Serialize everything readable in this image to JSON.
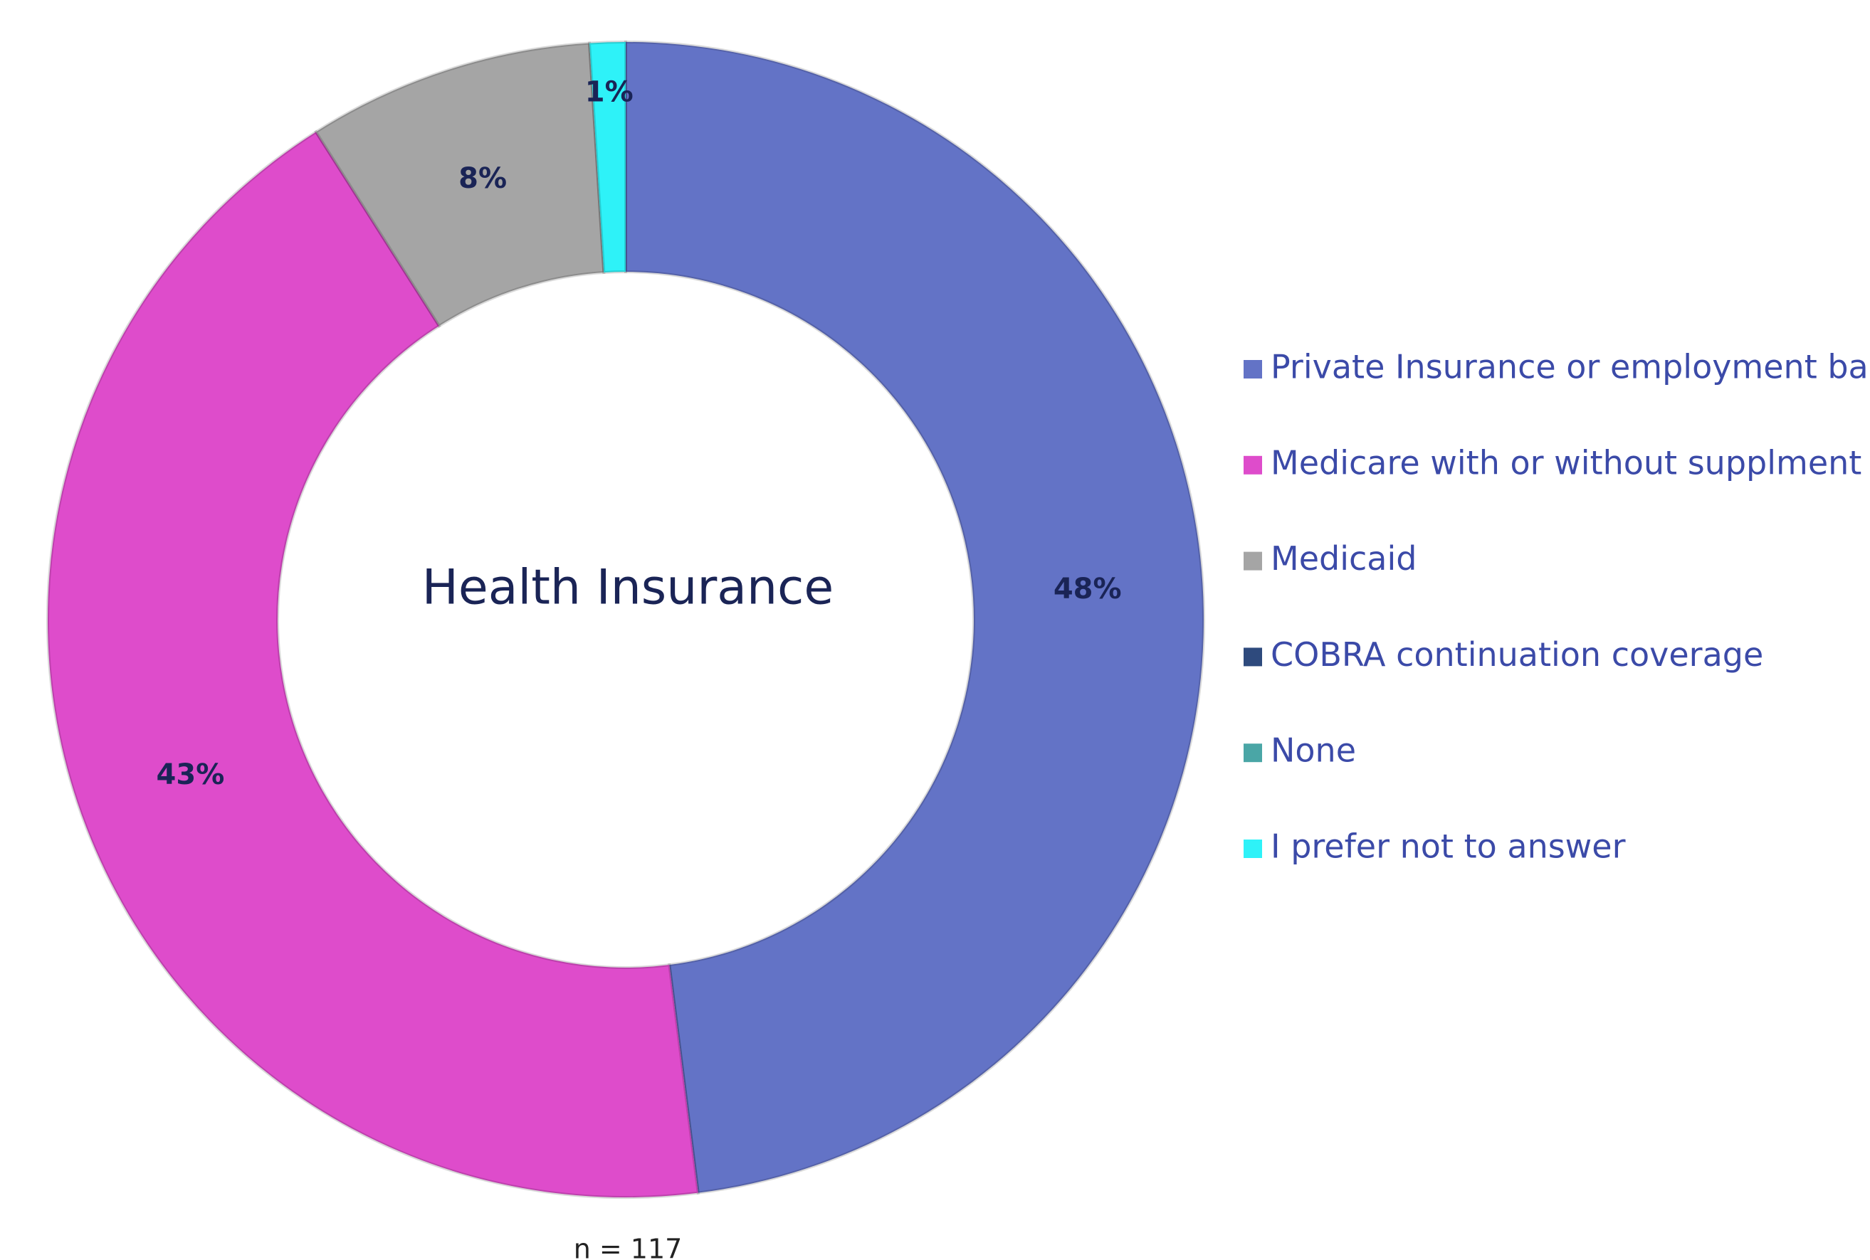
{
  "chart_data": {
    "type": "pie",
    "title": "Health Insurance",
    "note": "n = 117",
    "categories": [
      "Private Insurance or employment based",
      "Medicare with or without supplment",
      "Medicaid",
      "COBRA continuation coverage",
      "None",
      "I prefer not to answer"
    ],
    "values": [
      48,
      43,
      8,
      0,
      0,
      1
    ],
    "value_labels": [
      "48%",
      "43%",
      "8%",
      null,
      null,
      "1%"
    ],
    "colors": [
      "#6373c6",
      "#de4ccb",
      "#a5a5a5",
      "#2e4a7d",
      "#4aa6a6",
      "#2ef2f8"
    ],
    "legend": "right"
  }
}
